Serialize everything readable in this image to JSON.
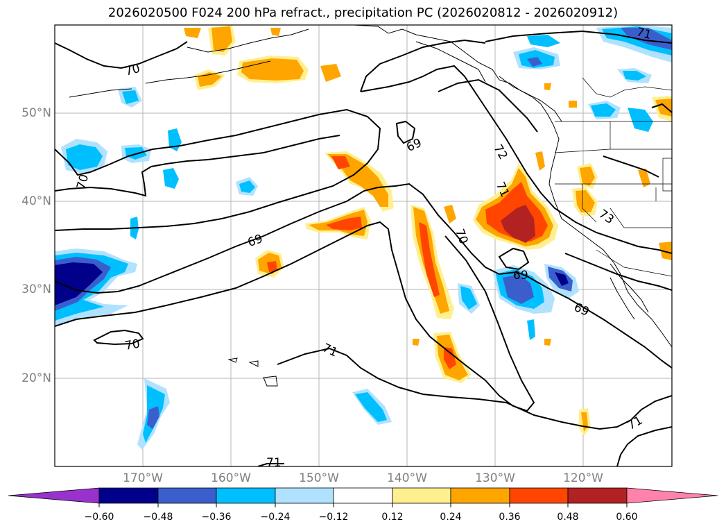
{
  "title": "2026020500 F024 200 hPa refract., precipitation PC (2026020812 - 2026020912)",
  "map": {
    "lat_labels": [
      "50°N",
      "40°N",
      "30°N",
      "20°N"
    ],
    "lon_labels": [
      "170°W",
      "160°W",
      "150°W",
      "140°W",
      "130°W",
      "120°W"
    ],
    "contour_labels": [
      "70",
      "70",
      "69",
      "69",
      "72",
      "71",
      "70",
      "69",
      "73",
      "69",
      "70",
      "71",
      "71",
      "71",
      "71"
    ]
  },
  "colorbar": {
    "ticks": [
      "−0.60",
      "−0.48",
      "−0.36",
      "−0.24",
      "−0.12",
      "0.12",
      "0.24",
      "0.36",
      "0.48",
      "0.60"
    ],
    "colors": {
      "under": "#9932cc",
      "bins": [
        "#00008b",
        "#3a5fcd",
        "#00bfff",
        "#b0e2ff",
        "#ffffff",
        "#fff08f",
        "#ffa500",
        "#ff4500",
        "#b22222"
      ],
      "over": "#ff82ab"
    }
  }
}
